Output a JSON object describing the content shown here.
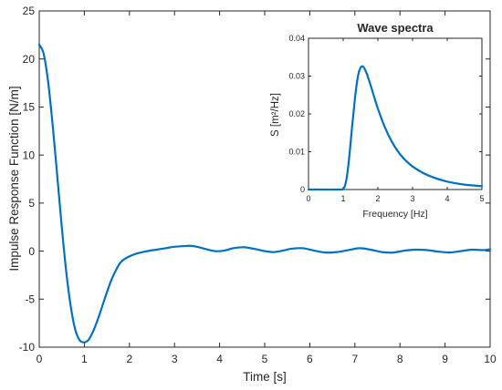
{
  "chart_data": [
    {
      "type": "line",
      "title": "",
      "xlabel": "Time [s]",
      "ylabel": "Impulse Response Function [N/m]",
      "xlim": [
        0,
        10
      ],
      "ylim": [
        -10,
        25
      ],
      "xticks": [
        "0",
        "1",
        "2",
        "3",
        "4",
        "5",
        "6",
        "7",
        "8",
        "9",
        "10"
      ],
      "yticks": [
        "-10",
        "-5",
        "0",
        "5",
        "10",
        "15",
        "20",
        "25"
      ],
      "grid": false,
      "series": [
        {
          "color": "#0072BD",
          "x": [
            0,
            0.1,
            0.2,
            0.3,
            0.4,
            0.5,
            0.6,
            0.7,
            0.8,
            0.9,
            1.0,
            1.05,
            1.1,
            1.2,
            1.3,
            1.4,
            1.5,
            1.6,
            1.7,
            1.8,
            1.9,
            2.0,
            2.1,
            2.2,
            2.4,
            2.6,
            2.8,
            3.0,
            3.2,
            3.35,
            3.5,
            3.7,
            3.9,
            4.1,
            4.3,
            4.55,
            4.8,
            5.0,
            5.2,
            5.4,
            5.6,
            5.85,
            6.1,
            6.35,
            6.6,
            6.85,
            7.1,
            7.35,
            7.6,
            7.85,
            8.1,
            8.35,
            8.6,
            8.85,
            9.1,
            9.35,
            9.6,
            9.85,
            10.0
          ],
          "y": [
            21.5,
            20.5,
            17.5,
            13.0,
            7.8,
            2.5,
            -2.2,
            -5.8,
            -8.2,
            -9.3,
            -9.5,
            -9.4,
            -9.2,
            -8.3,
            -7.1,
            -5.7,
            -4.3,
            -3.0,
            -2.0,
            -1.2,
            -0.8,
            -0.55,
            -0.35,
            -0.2,
            0.0,
            0.15,
            0.3,
            0.45,
            0.52,
            0.55,
            0.45,
            0.2,
            0.0,
            0.05,
            0.3,
            0.4,
            0.2,
            0.0,
            -0.1,
            0.05,
            0.25,
            0.3,
            0.05,
            -0.15,
            -0.1,
            0.1,
            0.3,
            0.15,
            -0.1,
            -0.15,
            0.05,
            0.15,
            0.1,
            -0.05,
            -0.15,
            0.0,
            0.15,
            0.1,
            0.2
          ]
        }
      ]
    },
    {
      "type": "line",
      "title": "Wave spectra",
      "xlabel": "Frequency [Hz]",
      "ylabel": "S [m²/Hz]",
      "xlim": [
        0,
        5
      ],
      "ylim": [
        0,
        0.04
      ],
      "xticks": [
        "0",
        "1",
        "2",
        "3",
        "4",
        "5"
      ],
      "yticks": [
        "0",
        "0.01",
        "0.02",
        "0.03",
        "0.04"
      ],
      "grid": false,
      "series": [
        {
          "color": "#0072BD",
          "x": [
            0,
            0.9,
            1.0,
            1.05,
            1.1,
            1.15,
            1.2,
            1.25,
            1.3,
            1.35,
            1.4,
            1.45,
            1.5,
            1.55,
            1.6,
            1.65,
            1.7,
            1.8,
            1.9,
            2.0,
            2.2,
            2.4,
            2.6,
            2.8,
            3.0,
            3.3,
            3.6,
            4.0,
            4.5,
            5.0
          ],
          "y": [
            0,
            0,
            0.0002,
            0.001,
            0.003,
            0.0065,
            0.011,
            0.016,
            0.0205,
            0.025,
            0.0285,
            0.031,
            0.0322,
            0.0326,
            0.0322,
            0.0313,
            0.0301,
            0.0273,
            0.0243,
            0.0214,
            0.0165,
            0.0127,
            0.0098,
            0.0077,
            0.0061,
            0.0044,
            0.0032,
            0.0021,
            0.0013,
            0.0009
          ]
        }
      ]
    }
  ]
}
